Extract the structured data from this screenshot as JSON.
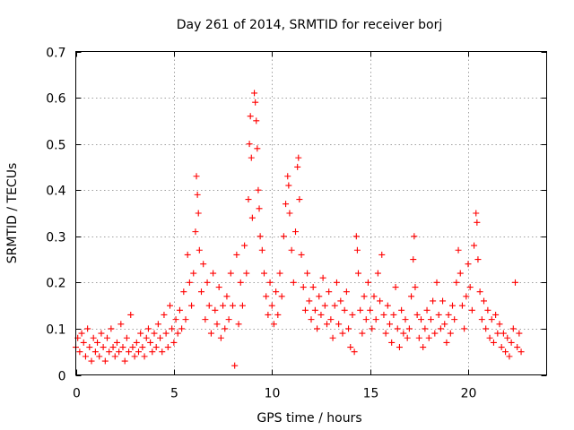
{
  "chart_data": {
    "type": "scatter",
    "title": "Day 261 of 2014, SRMTID for receiver borj",
    "xlabel": "GPS time / hours",
    "ylabel": "SRMTID / TECUs",
    "xlim": [
      0,
      24
    ],
    "ylim": [
      0,
      0.7
    ],
    "xticks": [
      0,
      5,
      10,
      15,
      20
    ],
    "xtick_labels": [
      "0",
      "5",
      "10",
      "15",
      "20"
    ],
    "yticks": [
      0,
      0.1,
      0.2,
      0.3,
      0.4,
      0.5,
      0.6,
      0.7
    ],
    "ytick_labels": [
      "0",
      "0.1",
      "0.2",
      "0.3",
      "0.4",
      "0.5",
      "0.6",
      "0.7"
    ],
    "grid": true,
    "marker": "+",
    "series": [
      {
        "name": "SRMTID",
        "color": "#ff0000",
        "points": [
          [
            0.0,
            0.06
          ],
          [
            0.1,
            0.08
          ],
          [
            0.2,
            0.05
          ],
          [
            0.3,
            0.09
          ],
          [
            0.4,
            0.07
          ],
          [
            0.5,
            0.04
          ],
          [
            0.6,
            0.1
          ],
          [
            0.7,
            0.06
          ],
          [
            0.8,
            0.03
          ],
          [
            0.9,
            0.08
          ],
          [
            1.0,
            0.05
          ],
          [
            1.1,
            0.07
          ],
          [
            1.2,
            0.04
          ],
          [
            1.3,
            0.09
          ],
          [
            1.4,
            0.06
          ],
          [
            1.5,
            0.03
          ],
          [
            1.6,
            0.08
          ],
          [
            1.7,
            0.05
          ],
          [
            1.8,
            0.1
          ],
          [
            1.9,
            0.06
          ],
          [
            2.0,
            0.04
          ],
          [
            2.1,
            0.07
          ],
          [
            2.2,
            0.05
          ],
          [
            2.3,
            0.11
          ],
          [
            2.4,
            0.06
          ],
          [
            2.5,
            0.03
          ],
          [
            2.6,
            0.08
          ],
          [
            2.7,
            0.05
          ],
          [
            2.8,
            0.13
          ],
          [
            2.9,
            0.06
          ],
          [
            3.0,
            0.04
          ],
          [
            3.1,
            0.07
          ],
          [
            3.2,
            0.05
          ],
          [
            3.3,
            0.09
          ],
          [
            3.4,
            0.06
          ],
          [
            3.5,
            0.04
          ],
          [
            3.6,
            0.08
          ],
          [
            3.7,
            0.1
          ],
          [
            3.8,
            0.07
          ],
          [
            3.9,
            0.05
          ],
          [
            4.0,
            0.09
          ],
          [
            4.1,
            0.06
          ],
          [
            4.2,
            0.11
          ],
          [
            4.3,
            0.08
          ],
          [
            4.4,
            0.05
          ],
          [
            4.5,
            0.13
          ],
          [
            4.6,
            0.09
          ],
          [
            4.7,
            0.06
          ],
          [
            4.8,
            0.15
          ],
          [
            4.9,
            0.1
          ],
          [
            5.0,
            0.07
          ],
          [
            5.1,
            0.12
          ],
          [
            5.2,
            0.09
          ],
          [
            5.3,
            0.14
          ],
          [
            5.4,
            0.1
          ],
          [
            5.5,
            0.18
          ],
          [
            5.6,
            0.12
          ],
          [
            5.7,
            0.26
          ],
          [
            5.8,
            0.2
          ],
          [
            5.9,
            0.15
          ],
          [
            6.0,
            0.22
          ],
          [
            6.1,
            0.31
          ],
          [
            6.15,
            0.43
          ],
          [
            6.2,
            0.39
          ],
          [
            6.25,
            0.35
          ],
          [
            6.3,
            0.27
          ],
          [
            6.4,
            0.18
          ],
          [
            6.5,
            0.24
          ],
          [
            6.6,
            0.12
          ],
          [
            6.7,
            0.2
          ],
          [
            6.8,
            0.15
          ],
          [
            6.9,
            0.09
          ],
          [
            7.0,
            0.22
          ],
          [
            7.1,
            0.14
          ],
          [
            7.2,
            0.11
          ],
          [
            7.3,
            0.19
          ],
          [
            7.4,
            0.08
          ],
          [
            7.5,
            0.15
          ],
          [
            7.6,
            0.1
          ],
          [
            7.7,
            0.17
          ],
          [
            7.8,
            0.12
          ],
          [
            7.9,
            0.22
          ],
          [
            8.0,
            0.15
          ],
          [
            8.1,
            0.02
          ],
          [
            8.2,
            0.26
          ],
          [
            8.3,
            0.11
          ],
          [
            8.4,
            0.2
          ],
          [
            8.5,
            0.15
          ],
          [
            8.6,
            0.28
          ],
          [
            8.7,
            0.22
          ],
          [
            8.8,
            0.38
          ],
          [
            8.85,
            0.5
          ],
          [
            8.9,
            0.56
          ],
          [
            8.95,
            0.47
          ],
          [
            9.0,
            0.34
          ],
          [
            9.1,
            0.61
          ],
          [
            9.15,
            0.59
          ],
          [
            9.2,
            0.55
          ],
          [
            9.25,
            0.49
          ],
          [
            9.3,
            0.4
          ],
          [
            9.35,
            0.36
          ],
          [
            9.4,
            0.3
          ],
          [
            9.5,
            0.27
          ],
          [
            9.6,
            0.22
          ],
          [
            9.7,
            0.17
          ],
          [
            9.8,
            0.13
          ],
          [
            9.9,
            0.2
          ],
          [
            10.0,
            0.15
          ],
          [
            10.1,
            0.11
          ],
          [
            10.2,
            0.18
          ],
          [
            10.3,
            0.13
          ],
          [
            10.4,
            0.22
          ],
          [
            10.5,
            0.17
          ],
          [
            10.6,
            0.3
          ],
          [
            10.7,
            0.37
          ],
          [
            10.8,
            0.43
          ],
          [
            10.85,
            0.41
          ],
          [
            10.9,
            0.35
          ],
          [
            11.0,
            0.27
          ],
          [
            11.1,
            0.2
          ],
          [
            11.2,
            0.31
          ],
          [
            11.3,
            0.45
          ],
          [
            11.35,
            0.47
          ],
          [
            11.4,
            0.38
          ],
          [
            11.5,
            0.26
          ],
          [
            11.6,
            0.19
          ],
          [
            11.7,
            0.14
          ],
          [
            11.8,
            0.22
          ],
          [
            11.9,
            0.16
          ],
          [
            12.0,
            0.12
          ],
          [
            12.1,
            0.19
          ],
          [
            12.2,
            0.14
          ],
          [
            12.3,
            0.1
          ],
          [
            12.4,
            0.17
          ],
          [
            12.5,
            0.13
          ],
          [
            12.6,
            0.21
          ],
          [
            12.7,
            0.15
          ],
          [
            12.8,
            0.11
          ],
          [
            12.9,
            0.18
          ],
          [
            13.0,
            0.12
          ],
          [
            13.1,
            0.08
          ],
          [
            13.2,
            0.15
          ],
          [
            13.3,
            0.2
          ],
          [
            13.4,
            0.11
          ],
          [
            13.5,
            0.16
          ],
          [
            13.6,
            0.09
          ],
          [
            13.7,
            0.14
          ],
          [
            13.8,
            0.18
          ],
          [
            13.9,
            0.1
          ],
          [
            14.0,
            0.06
          ],
          [
            14.1,
            0.13
          ],
          [
            14.2,
            0.05
          ],
          [
            14.3,
            0.3
          ],
          [
            14.35,
            0.27
          ],
          [
            14.4,
            0.22
          ],
          [
            14.5,
            0.14
          ],
          [
            14.6,
            0.09
          ],
          [
            14.7,
            0.17
          ],
          [
            14.8,
            0.12
          ],
          [
            14.9,
            0.2
          ],
          [
            15.0,
            0.14
          ],
          [
            15.1,
            0.1
          ],
          [
            15.2,
            0.17
          ],
          [
            15.3,
            0.12
          ],
          [
            15.4,
            0.22
          ],
          [
            15.5,
            0.16
          ],
          [
            15.6,
            0.26
          ],
          [
            15.7,
            0.13
          ],
          [
            15.8,
            0.09
          ],
          [
            15.9,
            0.15
          ],
          [
            16.0,
            0.11
          ],
          [
            16.1,
            0.07
          ],
          [
            16.2,
            0.13
          ],
          [
            16.3,
            0.19
          ],
          [
            16.4,
            0.1
          ],
          [
            16.5,
            0.06
          ],
          [
            16.6,
            0.14
          ],
          [
            16.7,
            0.09
          ],
          [
            16.8,
            0.12
          ],
          [
            16.9,
            0.08
          ],
          [
            17.0,
            0.1
          ],
          [
            17.1,
            0.17
          ],
          [
            17.2,
            0.25
          ],
          [
            17.25,
            0.3
          ],
          [
            17.3,
            0.19
          ],
          [
            17.4,
            0.13
          ],
          [
            17.5,
            0.08
          ],
          [
            17.6,
            0.12
          ],
          [
            17.7,
            0.06
          ],
          [
            17.8,
            0.1
          ],
          [
            17.9,
            0.14
          ],
          [
            18.0,
            0.08
          ],
          [
            18.1,
            0.12
          ],
          [
            18.2,
            0.16
          ],
          [
            18.3,
            0.09
          ],
          [
            18.4,
            0.2
          ],
          [
            18.5,
            0.13
          ],
          [
            18.6,
            0.1
          ],
          [
            18.7,
            0.16
          ],
          [
            18.8,
            0.11
          ],
          [
            18.9,
            0.07
          ],
          [
            19.0,
            0.13
          ],
          [
            19.1,
            0.09
          ],
          [
            19.2,
            0.15
          ],
          [
            19.3,
            0.12
          ],
          [
            19.4,
            0.2
          ],
          [
            19.5,
            0.27
          ],
          [
            19.6,
            0.22
          ],
          [
            19.7,
            0.15
          ],
          [
            19.8,
            0.1
          ],
          [
            19.9,
            0.17
          ],
          [
            20.0,
            0.24
          ],
          [
            20.1,
            0.19
          ],
          [
            20.2,
            0.14
          ],
          [
            20.3,
            0.28
          ],
          [
            20.4,
            0.35
          ],
          [
            20.45,
            0.33
          ],
          [
            20.5,
            0.25
          ],
          [
            20.6,
            0.18
          ],
          [
            20.7,
            0.12
          ],
          [
            20.8,
            0.16
          ],
          [
            20.9,
            0.1
          ],
          [
            21.0,
            0.14
          ],
          [
            21.1,
            0.08
          ],
          [
            21.2,
            0.12
          ],
          [
            21.3,
            0.07
          ],
          [
            21.4,
            0.13
          ],
          [
            21.5,
            0.09
          ],
          [
            21.6,
            0.11
          ],
          [
            21.7,
            0.06
          ],
          [
            21.8,
            0.09
          ],
          [
            21.9,
            0.05
          ],
          [
            22.0,
            0.08
          ],
          [
            22.1,
            0.04
          ],
          [
            22.2,
            0.07
          ],
          [
            22.3,
            0.1
          ],
          [
            22.4,
            0.2
          ],
          [
            22.5,
            0.06
          ],
          [
            22.6,
            0.09
          ],
          [
            22.7,
            0.05
          ]
        ]
      }
    ]
  }
}
